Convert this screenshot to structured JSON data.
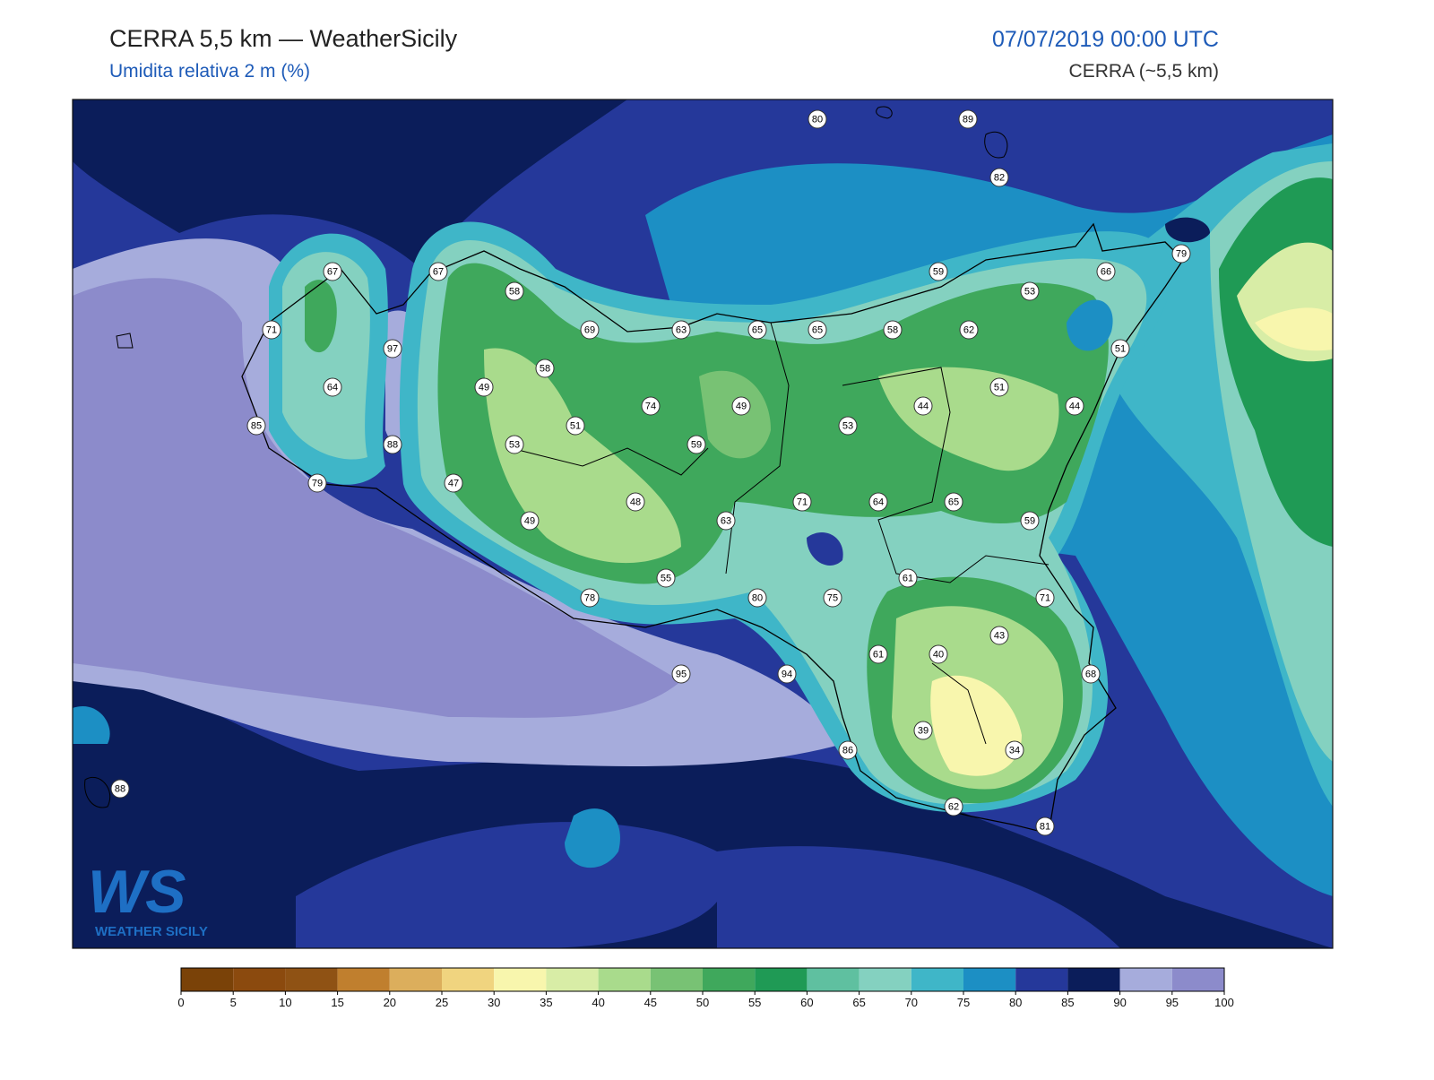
{
  "header": {
    "title": "CERRA 5,5 km — WeatherSicily",
    "subtitle": "Umidita relativa 2 m (%)",
    "date": "07/07/2019 00:00 UTC",
    "source": "CERRA (~5,5 km)"
  },
  "stations": [
    80,
    89,
    82,
    67,
    67,
    58,
    59,
    53,
    66,
    79,
    71,
    97,
    69,
    63,
    65,
    65,
    58,
    62,
    51,
    64,
    49,
    58,
    51,
    44,
    44,
    74,
    49,
    51,
    53,
    85,
    88,
    53,
    59,
    79,
    47,
    48,
    71,
    64,
    65,
    49,
    63,
    59,
    61,
    55,
    78,
    80,
    75,
    71,
    43,
    40,
    61,
    68,
    95,
    94,
    39,
    34,
    86,
    88,
    62,
    81
  ],
  "colorbar": {
    "ticks": [
      0,
      5,
      10,
      15,
      20,
      25,
      30,
      35,
      40,
      45,
      50,
      55,
      60,
      65,
      70,
      75,
      80,
      85,
      90,
      95,
      100
    ],
    "colors": [
      "#7a4208",
      "#8b4a0e",
      "#8f5214",
      "#c07f2e",
      "#dcae5c",
      "#f0d47f",
      "#f8f6ad",
      "#d8eda6",
      "#a9db8c",
      "#78c274",
      "#3fa85c",
      "#1f9a55",
      "#5fc0a0",
      "#84d1c0",
      "#3fb6c8",
      "#1c8fc4",
      "#25389a",
      "#0b1d5a",
      "#a6acdc",
      "#8c8bcb"
    ]
  },
  "logo": {
    "mark": "WS",
    "text": "WEATHER SICILY"
  }
}
